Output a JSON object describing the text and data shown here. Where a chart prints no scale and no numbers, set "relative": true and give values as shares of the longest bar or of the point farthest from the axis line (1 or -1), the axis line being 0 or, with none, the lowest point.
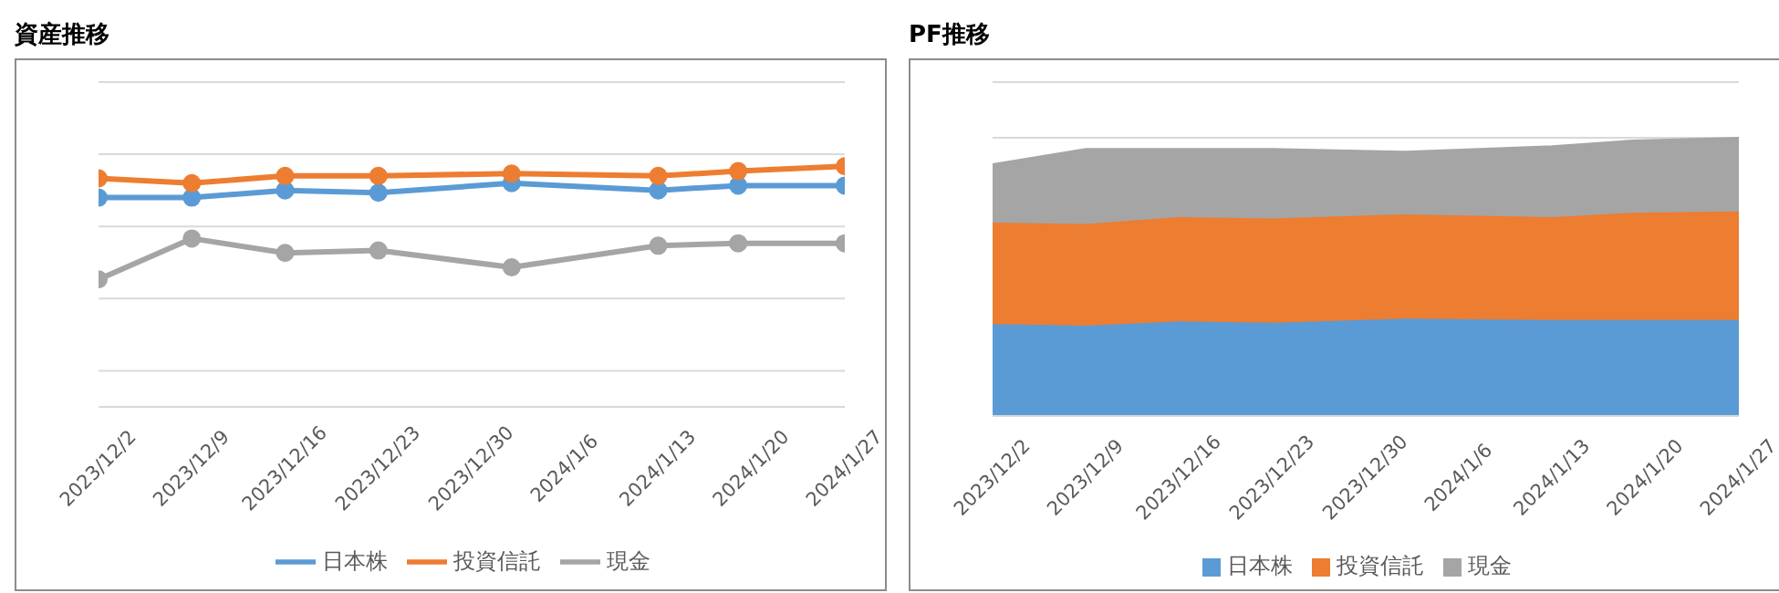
{
  "chart_data": [
    {
      "type": "line",
      "title": "資産推移",
      "relative": true,
      "x": [
        "2023-12-02",
        "2023-12-09",
        "2023-12-16",
        "2023-12-23",
        "2024-01-02",
        "2024-01-13",
        "2024-01-19",
        "2024-01-27"
      ],
      "xlim": [
        "2023-12-02",
        "2024-01-27"
      ],
      "xticks": [
        {
          "value": "2023-12-02",
          "label": "2023/12/2"
        },
        {
          "value": "2023-12-09",
          "label": "2023/12/9"
        },
        {
          "value": "2023-12-16",
          "label": "2023/12/16"
        },
        {
          "value": "2023-12-23",
          "label": "2023/12/23"
        },
        {
          "value": "2023-12-30",
          "label": "2023/12/30"
        },
        {
          "value": "2024-01-06",
          "label": "2024/1/6"
        },
        {
          "value": "2024-01-13",
          "label": "2024/1/13"
        },
        {
          "value": "2024-01-20",
          "label": "2024/1/20"
        },
        {
          "value": "2024-01-27",
          "label": "2024/1/27"
        }
      ],
      "series": [
        {
          "name": "日本株",
          "color": "#5b9bd5",
          "values": [
            0.87,
            0.87,
            0.9,
            0.89,
            0.93,
            0.9,
            0.92,
            0.92
          ]
        },
        {
          "name": "投資信託",
          "color": "#ed7d31",
          "values": [
            0.95,
            0.93,
            0.96,
            0.96,
            0.97,
            0.96,
            0.98,
            1
          ]
        },
        {
          "name": "現金",
          "color": "#a5a5a5",
          "values": [
            0.53,
            0.7,
            0.64,
            0.65,
            0.58,
            0.67,
            0.68,
            0.68
          ]
        }
      ],
      "marker": "circle",
      "grid": "y",
      "legend": "bottom"
    },
    {
      "type": "area",
      "title": "PF推移",
      "relative": true,
      "stacked": true,
      "x": [
        "2023-12-02",
        "2023-12-09",
        "2023-12-16",
        "2023-12-23",
        "2024-01-02",
        "2024-01-13",
        "2024-01-19",
        "2024-01-27"
      ],
      "xlim": [
        "2023-12-02",
        "2024-01-27"
      ],
      "xticks": [
        {
          "value": "2023-12-02",
          "label": "2023/12/2"
        },
        {
          "value": "2023-12-09",
          "label": "2023/12/9"
        },
        {
          "value": "2023-12-16",
          "label": "2023/12/16"
        },
        {
          "value": "2023-12-23",
          "label": "2023/12/23"
        },
        {
          "value": "2023-12-30",
          "label": "2023/12/30"
        },
        {
          "value": "2024-01-06",
          "label": "2024/1/6"
        },
        {
          "value": "2024-01-13",
          "label": "2024/1/13"
        },
        {
          "value": "2024-01-20",
          "label": "2024/1/20"
        },
        {
          "value": "2024-01-27",
          "label": "2024/1/27"
        }
      ],
      "series": [
        {
          "name": "日本株",
          "color": "#5b9bd5",
          "values": [
            0.33,
            0.325,
            0.34,
            0.335,
            0.35,
            0.345,
            0.345,
            0.345
          ]
        },
        {
          "name": "投資信託",
          "color": "#ed7d31",
          "values": [
            0.365,
            0.365,
            0.375,
            0.375,
            0.375,
            0.37,
            0.385,
            0.39
          ]
        },
        {
          "name": "現金",
          "color": "#a5a5a5",
          "values": [
            0.21,
            0.27,
            0.245,
            0.25,
            0.225,
            0.255,
            0.26,
            0.265
          ]
        }
      ],
      "grid": "y",
      "legend": "bottom"
    }
  ]
}
